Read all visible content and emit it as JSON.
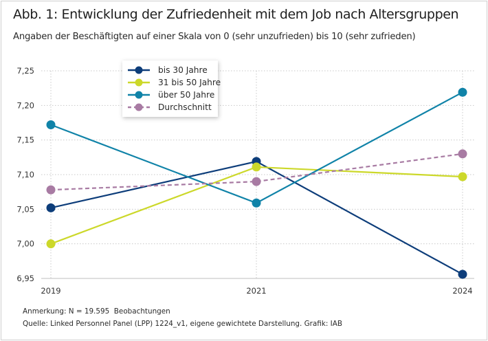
{
  "title": "Abb. 1: Entwicklung der Zufriedenheit mit dem Job nach Altersgruppen",
  "subtitle": "Angaben der Beschäftigten auf einer Skala von 0 (sehr unzufrieden) bis 10 (sehr zufrieden)",
  "notes": {
    "remark": "Anmerkung: N = 19.595  Beobachtungen",
    "source": "Quelle: Linked Personnel Panel (LPP) 1224_v1, eigene gewichtete Darstellung. Grafik: IAB"
  },
  "chart_data": {
    "type": "line",
    "title": "Abb. 1: Entwicklung der Zufriedenheit mit dem Job nach Altersgruppen",
    "subtitle": "Angaben der Beschäftigten auf einer Skala von 0 (sehr unzufrieden) bis 10 (sehr zufrieden)",
    "categories": [
      "2019",
      "2021",
      "2024"
    ],
    "ylim": [
      6.95,
      7.25
    ],
    "yticks": [
      "6,95",
      "7,00",
      "7,05",
      "7,10",
      "7,15",
      "7,20",
      "7,25"
    ],
    "ytick_values": [
      6.95,
      7.0,
      7.05,
      7.1,
      7.15,
      7.2,
      7.25
    ],
    "grid": true,
    "legend_position": "top-left",
    "series": [
      {
        "name": "bis 30 Jahre",
        "color": "#0d3d7a",
        "dashed": false,
        "values": [
          7.052,
          7.119,
          6.956
        ]
      },
      {
        "name": "31 bis 50 Jahre",
        "color": "#ccd82a",
        "dashed": false,
        "values": [
          7.0,
          7.111,
          7.097
        ]
      },
      {
        "name": "über 50 Jahre",
        "color": "#1083a8",
        "dashed": false,
        "values": [
          7.172,
          7.059,
          7.219
        ]
      },
      {
        "name": "Durchschnitt",
        "color": "#a87ba3",
        "dashed": true,
        "values": [
          7.078,
          7.09,
          7.13
        ]
      }
    ]
  }
}
